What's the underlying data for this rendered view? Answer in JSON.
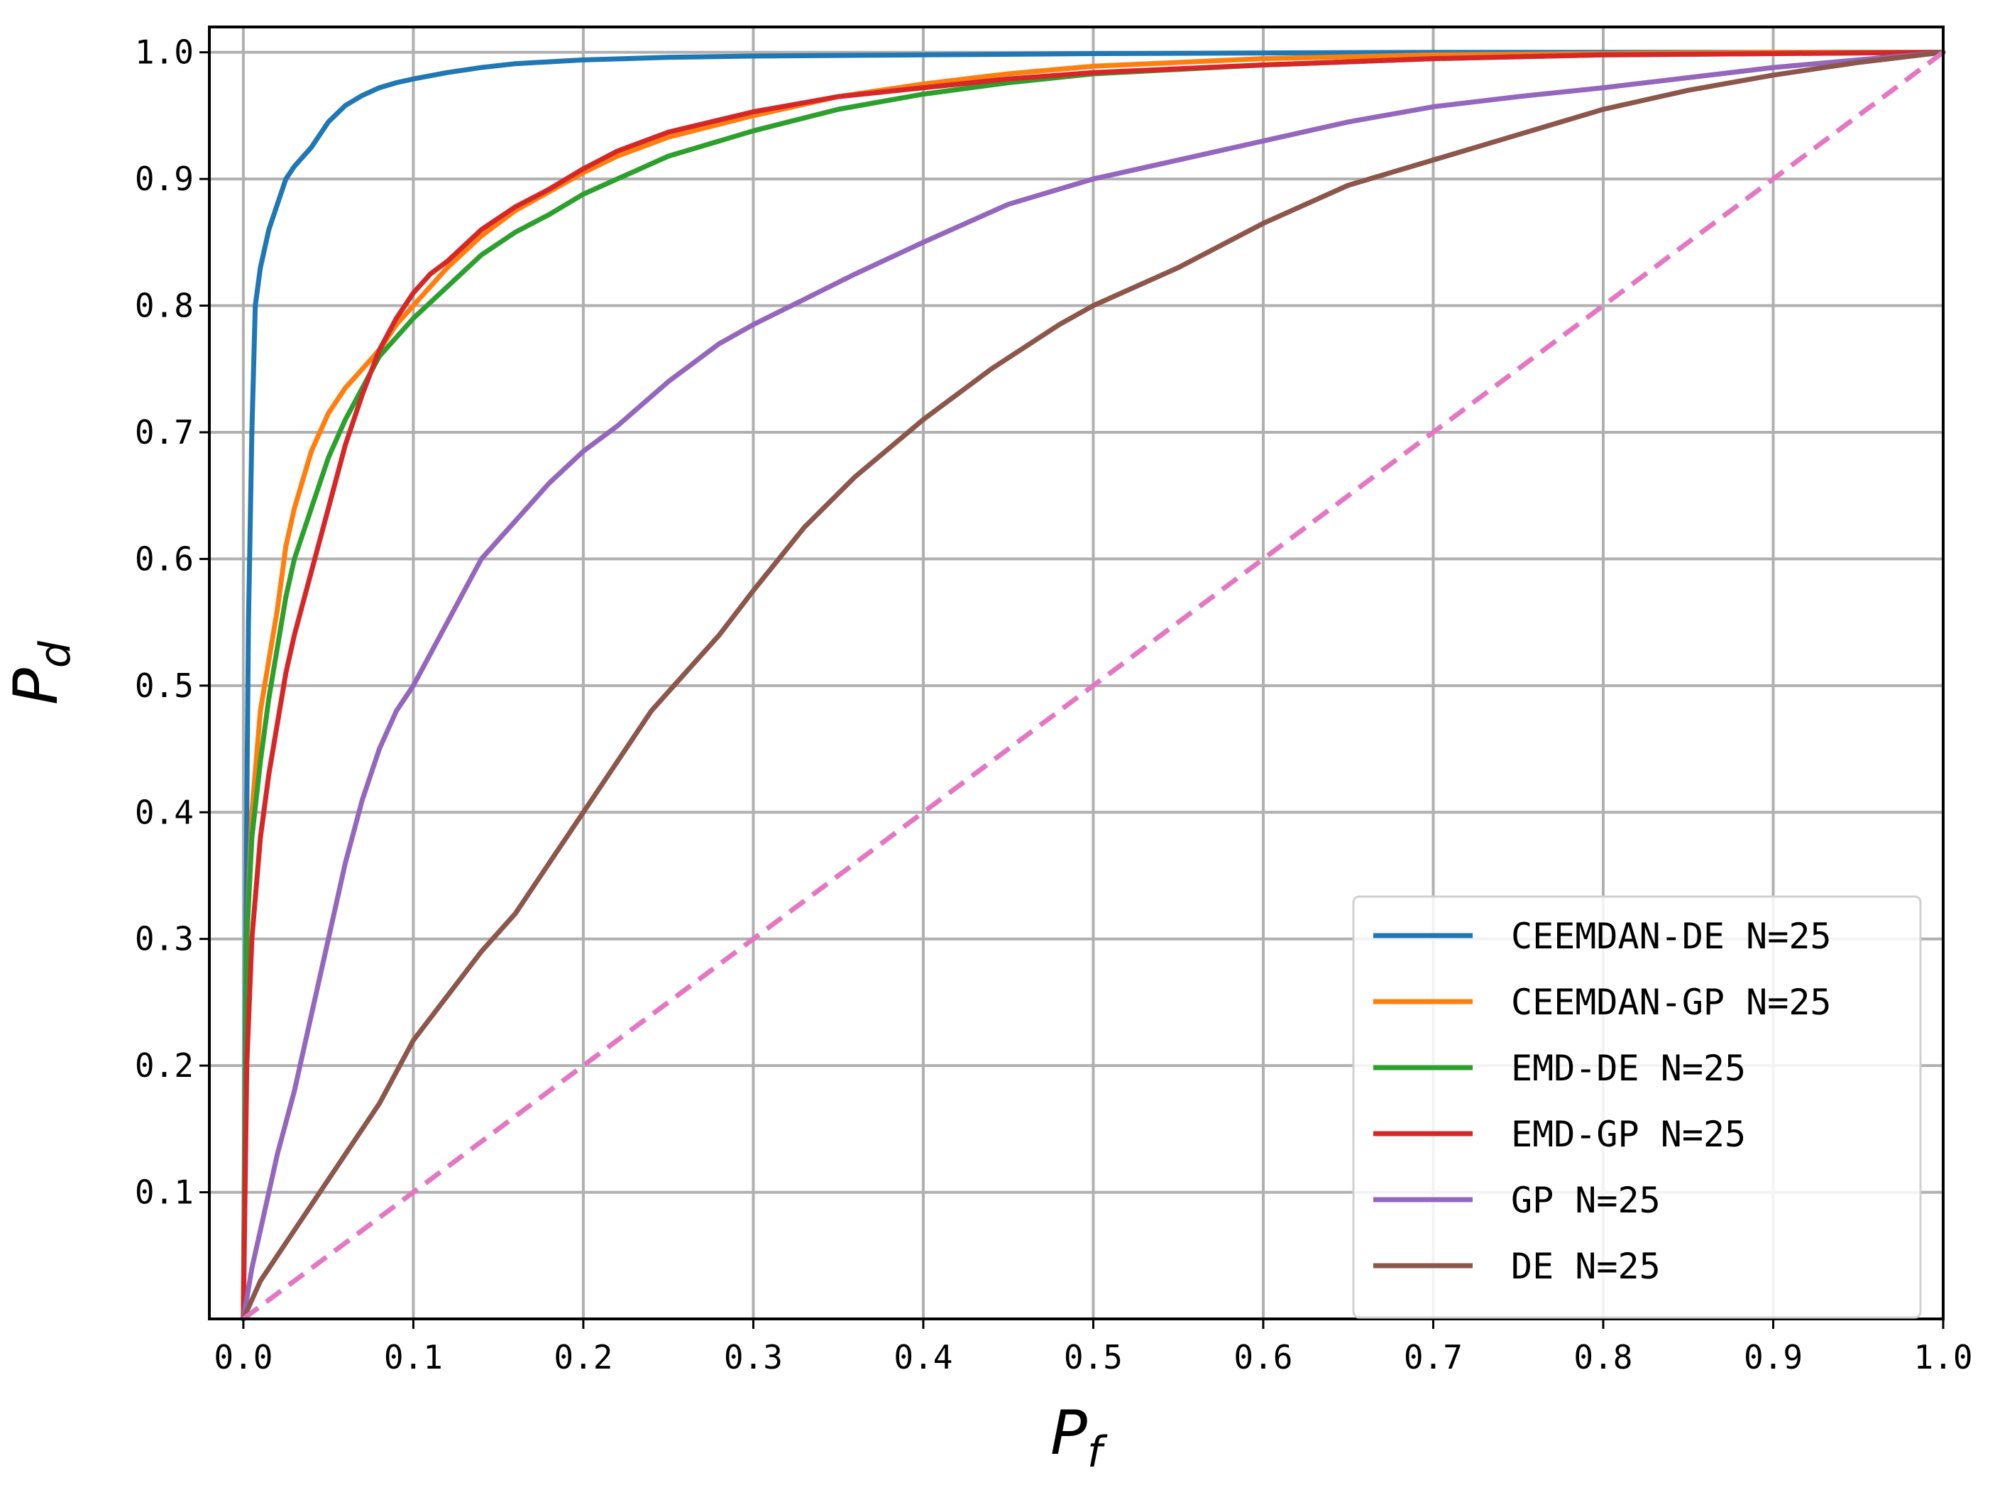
{
  "chart_data": {
    "type": "line",
    "xlabel": "P",
    "xlabel_sub": "f",
    "ylabel": "P",
    "ylabel_sub": "d",
    "xlim": [
      -0.02,
      1.0
    ],
    "ylim": [
      0.0,
      1.02
    ],
    "xticks": [
      0.0,
      0.1,
      0.2,
      0.3,
      0.4,
      0.5,
      0.6,
      0.7,
      0.8,
      0.9,
      1.0
    ],
    "xtick_labels": [
      "0.0",
      "0.1",
      "0.2",
      "0.3",
      "0.4",
      "0.5",
      "0.6",
      "0.7",
      "0.8",
      "0.9",
      "1.0"
    ],
    "yticks": [
      0.1,
      0.2,
      0.3,
      0.4,
      0.5,
      0.6,
      0.7,
      0.8,
      0.9,
      1.0
    ],
    "ytick_labels": [
      "0.1",
      "0.2",
      "0.3",
      "0.4",
      "0.5",
      "0.6",
      "0.7",
      "0.8",
      "0.9",
      "1.0"
    ],
    "grid": true,
    "legend_position": "lower-right",
    "series": [
      {
        "name": "CEEMDAN-DE N=25",
        "color": "#1f77b4",
        "dash": false,
        "x": [
          0,
          0.001,
          0.002,
          0.003,
          0.005,
          0.007,
          0.01,
          0.015,
          0.02,
          0.025,
          0.03,
          0.04,
          0.05,
          0.06,
          0.07,
          0.08,
          0.09,
          0.1,
          0.12,
          0.14,
          0.16,
          0.2,
          0.25,
          0.3,
          0.4,
          0.5,
          0.6,
          0.7,
          0.8,
          0.9,
          1.0
        ],
        "y": [
          0,
          0.2,
          0.4,
          0.55,
          0.7,
          0.8,
          0.83,
          0.86,
          0.88,
          0.9,
          0.91,
          0.925,
          0.945,
          0.958,
          0.966,
          0.972,
          0.976,
          0.979,
          0.984,
          0.988,
          0.991,
          0.994,
          0.996,
          0.997,
          0.998,
          0.999,
          0.9995,
          1.0,
          1.0,
          1.0,
          1.0
        ]
      },
      {
        "name": "CEEMDAN-GP N=25",
        "color": "#ff7f0e",
        "dash": false,
        "x": [
          0,
          0.002,
          0.005,
          0.01,
          0.015,
          0.02,
          0.025,
          0.03,
          0.04,
          0.05,
          0.06,
          0.07,
          0.08,
          0.09,
          0.1,
          0.12,
          0.14,
          0.16,
          0.18,
          0.2,
          0.22,
          0.25,
          0.3,
          0.35,
          0.4,
          0.45,
          0.5,
          0.6,
          0.7,
          0.8,
          0.9,
          1.0
        ],
        "y": [
          0,
          0.3,
          0.4,
          0.48,
          0.52,
          0.56,
          0.61,
          0.64,
          0.685,
          0.715,
          0.735,
          0.75,
          0.765,
          0.785,
          0.8,
          0.83,
          0.855,
          0.875,
          0.89,
          0.905,
          0.918,
          0.933,
          0.95,
          0.965,
          0.975,
          0.983,
          0.989,
          0.995,
          0.998,
          0.999,
          1.0,
          1.0
        ]
      },
      {
        "name": "EMD-DE N=25",
        "color": "#2ca02c",
        "dash": false,
        "x": [
          0,
          0.002,
          0.005,
          0.01,
          0.015,
          0.02,
          0.025,
          0.03,
          0.04,
          0.05,
          0.06,
          0.07,
          0.08,
          0.09,
          0.1,
          0.12,
          0.14,
          0.16,
          0.18,
          0.2,
          0.22,
          0.25,
          0.3,
          0.35,
          0.4,
          0.45,
          0.5,
          0.6,
          0.7,
          0.8,
          0.9,
          1.0
        ],
        "y": [
          0,
          0.3,
          0.38,
          0.44,
          0.49,
          0.53,
          0.57,
          0.6,
          0.64,
          0.68,
          0.71,
          0.735,
          0.76,
          0.775,
          0.79,
          0.815,
          0.84,
          0.858,
          0.872,
          0.888,
          0.9,
          0.918,
          0.938,
          0.955,
          0.967,
          0.976,
          0.983,
          0.99,
          0.995,
          0.998,
          0.999,
          1.0
        ]
      },
      {
        "name": "EMD-GP N=25",
        "color": "#d62728",
        "dash": false,
        "x": [
          0,
          0.002,
          0.005,
          0.01,
          0.015,
          0.02,
          0.025,
          0.03,
          0.04,
          0.05,
          0.06,
          0.07,
          0.08,
          0.09,
          0.1,
          0.11,
          0.12,
          0.14,
          0.16,
          0.18,
          0.2,
          0.22,
          0.25,
          0.3,
          0.35,
          0.4,
          0.45,
          0.5,
          0.6,
          0.7,
          0.8,
          0.9,
          1.0
        ],
        "y": [
          0,
          0.2,
          0.3,
          0.38,
          0.43,
          0.47,
          0.51,
          0.54,
          0.59,
          0.64,
          0.69,
          0.73,
          0.765,
          0.79,
          0.81,
          0.825,
          0.835,
          0.86,
          0.878,
          0.892,
          0.908,
          0.922,
          0.937,
          0.953,
          0.965,
          0.972,
          0.979,
          0.984,
          0.99,
          0.995,
          0.998,
          0.999,
          1.0
        ]
      },
      {
        "name": "GP N=25",
        "color": "#9467bd",
        "dash": false,
        "x": [
          0,
          0.005,
          0.01,
          0.02,
          0.03,
          0.04,
          0.05,
          0.06,
          0.07,
          0.08,
          0.09,
          0.1,
          0.12,
          0.14,
          0.16,
          0.18,
          0.2,
          0.22,
          0.25,
          0.28,
          0.3,
          0.33,
          0.36,
          0.4,
          0.45,
          0.5,
          0.55,
          0.6,
          0.65,
          0.7,
          0.75,
          0.8,
          0.85,
          0.9,
          0.95,
          1.0
        ],
        "y": [
          0,
          0.04,
          0.07,
          0.13,
          0.18,
          0.24,
          0.3,
          0.36,
          0.41,
          0.45,
          0.48,
          0.5,
          0.55,
          0.6,
          0.63,
          0.66,
          0.685,
          0.705,
          0.74,
          0.77,
          0.785,
          0.805,
          0.825,
          0.85,
          0.88,
          0.9,
          0.915,
          0.93,
          0.945,
          0.957,
          0.965,
          0.972,
          0.98,
          0.988,
          0.994,
          1.0
        ]
      },
      {
        "name": "DE N=25",
        "color": "#8c564b",
        "dash": false,
        "x": [
          0,
          0.01,
          0.02,
          0.03,
          0.04,
          0.06,
          0.08,
          0.1,
          0.12,
          0.14,
          0.16,
          0.18,
          0.2,
          0.22,
          0.24,
          0.26,
          0.28,
          0.3,
          0.33,
          0.36,
          0.4,
          0.44,
          0.48,
          0.5,
          0.55,
          0.6,
          0.65,
          0.7,
          0.75,
          0.8,
          0.85,
          0.9,
          0.95,
          1.0
        ],
        "y": [
          0,
          0.03,
          0.05,
          0.07,
          0.09,
          0.13,
          0.17,
          0.22,
          0.255,
          0.29,
          0.32,
          0.36,
          0.4,
          0.44,
          0.48,
          0.51,
          0.54,
          0.575,
          0.625,
          0.665,
          0.71,
          0.75,
          0.785,
          0.8,
          0.83,
          0.865,
          0.895,
          0.915,
          0.935,
          0.955,
          0.97,
          0.982,
          0.992,
          1.0
        ]
      },
      {
        "name": "",
        "color": "#e377c2",
        "dash": true,
        "x": [
          0,
          1.0
        ],
        "y": [
          0,
          1.0
        ]
      }
    ]
  }
}
